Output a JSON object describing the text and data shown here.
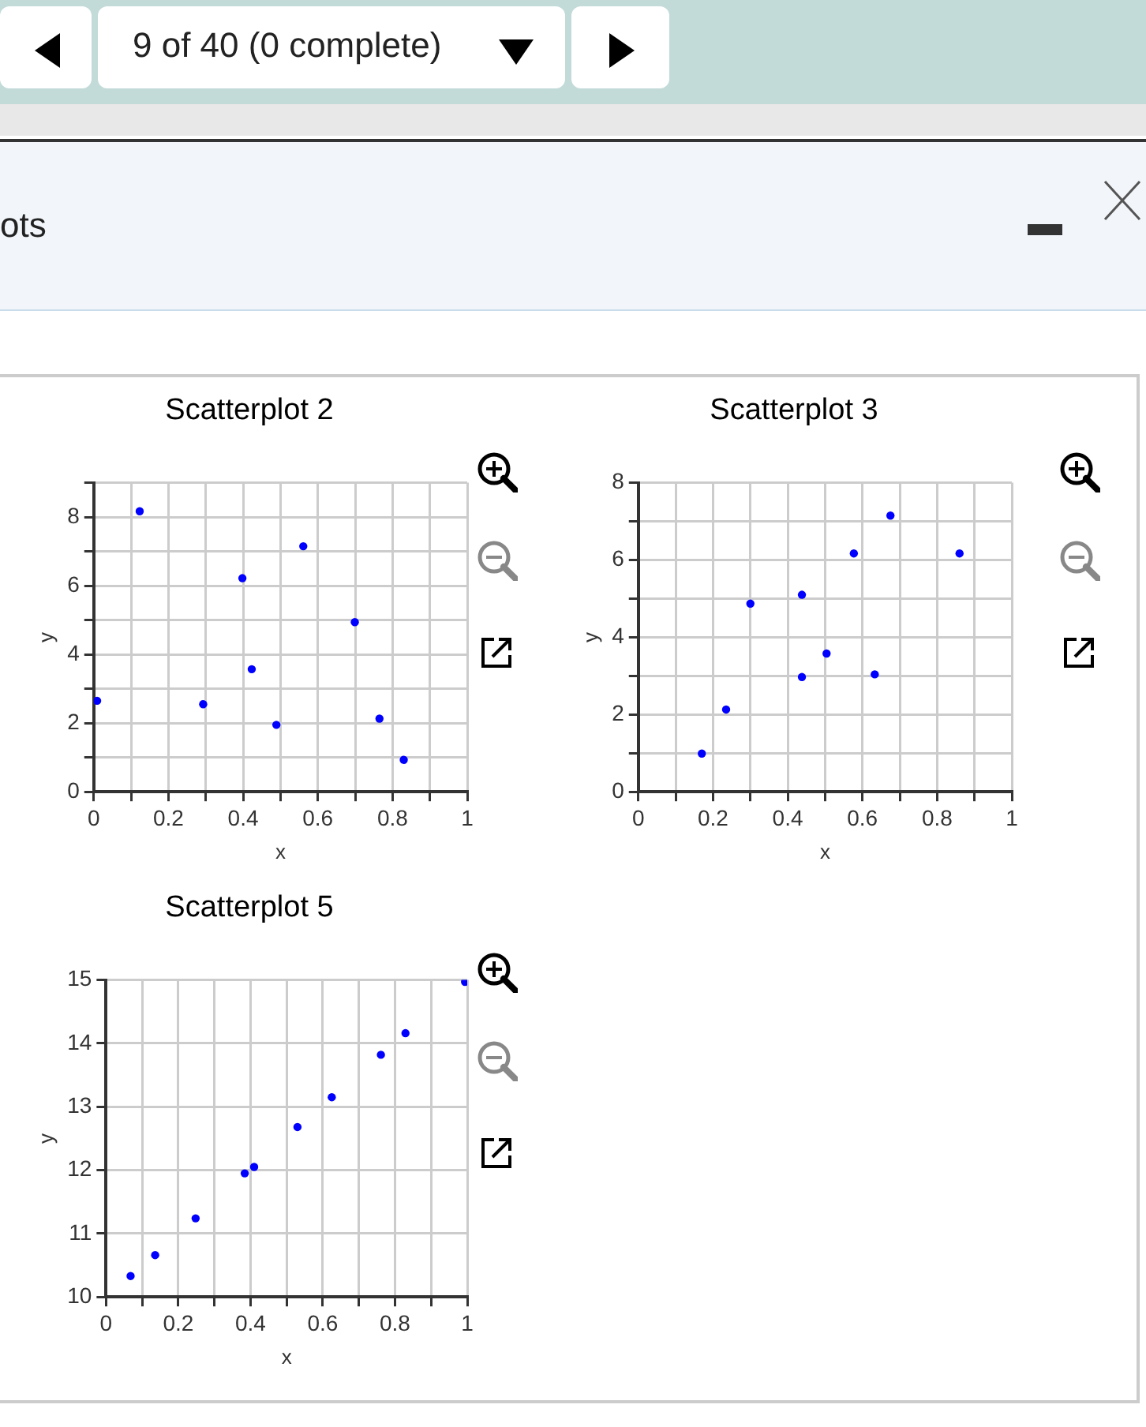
{
  "chart_data": [
    {
      "type": "scatter",
      "title": "Scatterplot 2",
      "xlabel": "x",
      "ylabel": "y",
      "color": "#0000ff",
      "marker": "circle",
      "grid": true,
      "legend": false,
      "annotations": [
        "9 of 40 (0 complete)",
        "ots"
      ],
      "x": [
        0.123,
        0.561,
        0.398,
        0.699,
        0.423,
        0.009,
        0.293,
        0.489,
        0.765,
        0.83
      ],
      "values": [
        8.17,
        7.15,
        6.22,
        4.94,
        3.57,
        2.65,
        2.55,
        1.95,
        2.13,
        0.93
      ],
      "xlim": [
        0,
        1
      ],
      "ylim": [
        0,
        9
      ],
      "xticks": [
        0,
        {
          "value": 0.1,
          "label": null
        },
        0.2,
        {
          "value": 0.3,
          "label": null
        },
        0.4,
        {
          "value": 0.5,
          "label": null
        },
        0.6,
        {
          "value": 0.7,
          "label": null
        },
        0.8,
        {
          "value": 0.9,
          "label": null
        },
        1
      ],
      "yticks": [
        0,
        {
          "value": 1,
          "label": null
        },
        2,
        {
          "value": 3,
          "label": null
        },
        4,
        {
          "value": 5,
          "label": null
        },
        6,
        {
          "value": 7,
          "label": null
        },
        8,
        {
          "value": 9,
          "label": null
        }
      ]
    },
    {
      "type": "scatter",
      "title": "Scatterplot 3",
      "xlabel": "x",
      "ylabel": "y",
      "color": "#0000ff",
      "marker": "circle",
      "grid": true,
      "legend": false,
      "x": [
        0.17,
        0.235,
        0.3,
        0.438,
        0.438,
        0.504,
        0.577,
        0.675,
        0.633,
        0.86
      ],
      "values": [
        0.99,
        2.13,
        4.87,
        5.1,
        2.97,
        3.58,
        6.17,
        7.15,
        3.04,
        6.17
      ],
      "xlim": [
        0,
        1
      ],
      "ylim": [
        0,
        8
      ],
      "xticks": [
        0,
        {
          "value": 0.1,
          "label": null
        },
        0.2,
        {
          "value": 0.3,
          "label": null
        },
        0.4,
        {
          "value": 0.5,
          "label": null
        },
        0.6,
        {
          "value": 0.7,
          "label": null
        },
        0.8,
        {
          "value": 0.9,
          "label": null
        },
        1
      ],
      "yticks": [
        0,
        {
          "value": 1,
          "label": null
        },
        2,
        {
          "value": 3,
          "label": null
        },
        4,
        {
          "value": 5,
          "label": null
        },
        6,
        {
          "value": 7,
          "label": null
        },
        8
      ]
    },
    {
      "type": "scatter",
      "title": "Scatterplot 5",
      "xlabel": "x",
      "ylabel": "y",
      "color": "#0000ff",
      "marker": "circle",
      "grid": true,
      "legend": false,
      "x": [
        0.068,
        0.136,
        0.248,
        0.384,
        0.41,
        0.53,
        0.625,
        0.761,
        0.829,
        0.994
      ],
      "values": [
        10.33,
        10.66,
        11.24,
        11.95,
        12.05,
        12.68,
        13.15,
        13.82,
        14.16,
        14.97
      ],
      "xlim": [
        0,
        1
      ],
      "ylim": [
        10,
        15
      ],
      "xticks": [
        0,
        {
          "value": 0.1,
          "label": null
        },
        0.2,
        {
          "value": 0.3,
          "label": null
        },
        0.4,
        {
          "value": 0.5,
          "label": null
        },
        0.6,
        {
          "value": 0.7,
          "label": null
        },
        0.8,
        {
          "value": 0.9,
          "label": null
        },
        1
      ],
      "yticks": [
        10,
        11,
        12,
        13,
        14,
        15
      ]
    }
  ]
}
